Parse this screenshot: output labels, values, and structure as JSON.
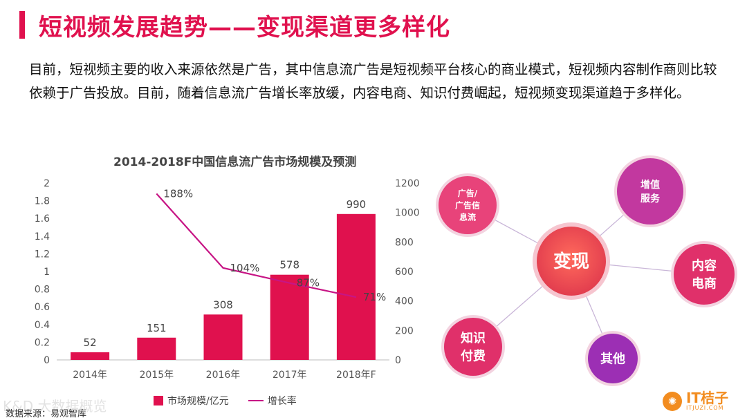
{
  "header": {
    "title": "短视频发展趋势——变现渠道更多样化"
  },
  "intro": {
    "text": "目前，短视频主要的收入来源依然是广告，其中信息流广告是短视频平台核心的商业模式，短视频内容制作商则比较依赖于广告投放。目前，随着信息流广告增长率放缓，内容电商、知识付费崛起，短视频变现渠道趋于多样化。"
  },
  "chart_data": {
    "type": "bar",
    "title": "2014-2018F中国信息流广告市场规模及预测",
    "categories": [
      "2014年",
      "2015年",
      "2016年",
      "2017年",
      "2018年F"
    ],
    "series": [
      {
        "name": "市场规模/亿元",
        "type": "bar",
        "axis": "right",
        "values": [
          52,
          151,
          308,
          578,
          990
        ],
        "labels": [
          "52",
          "151",
          "308",
          "578",
          "990"
        ],
        "color": "#e0114e"
      },
      {
        "name": "增长率",
        "type": "line",
        "axis": "left",
        "values": [
          null,
          1.88,
          1.04,
          0.87,
          0.71
        ],
        "labels": [
          "",
          "188%",
          "104%",
          "87%",
          "71%"
        ],
        "color": "#c71585"
      }
    ],
    "left_axis": {
      "min": 0,
      "max": 2,
      "ticks": [
        "0",
        "0.2",
        "0.4",
        "0.6",
        "0.8",
        "1",
        "1.2",
        "1.4",
        "1.6",
        "1.8",
        "2"
      ]
    },
    "right_axis": {
      "min": 0,
      "max": 1200,
      "ticks": [
        "0",
        "200",
        "400",
        "600",
        "800",
        "1000",
        "1200"
      ]
    },
    "legend_position": "bottom",
    "grid": false
  },
  "legend": {
    "bar_label": "市场规模/亿元",
    "line_label": "增长率"
  },
  "mindmap": {
    "center": "变现",
    "nodes": [
      {
        "label": [
          "广告/",
          "广告信",
          "息流"
        ],
        "color": "#e8437a"
      },
      {
        "label": [
          "增值",
          "服务"
        ],
        "color": "#c2389f"
      },
      {
        "label": [
          "内容",
          "电商"
        ],
        "color": "#e0306a"
      },
      {
        "label": [
          "其他"
        ],
        "color": "#9c2fb4"
      },
      {
        "label": [
          "知识",
          "付费"
        ],
        "color": "#e0306a"
      }
    ],
    "center_color": "#e23d4e",
    "line_color": "#c9b6d8"
  },
  "footer": {
    "source": "数据来源：易观智库",
    "watermark": "K&D 大数据概览",
    "logo_main": "IT桔子",
    "logo_sub": "ITJUZI.COM",
    "logo_icon": "orange-slice"
  }
}
